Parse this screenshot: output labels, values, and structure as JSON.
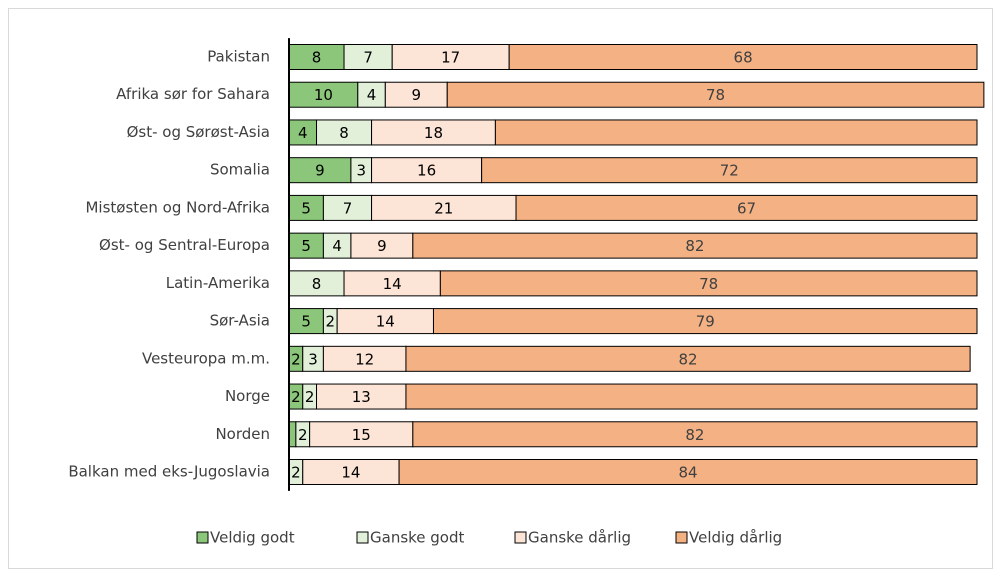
{
  "chart_data": {
    "type": "stacked_barh",
    "categories": [
      "Pakistan",
      "Afrika sør for Sahara",
      "Øst- og Sørøst-Asia",
      "Somalia",
      "Mistøsten og Nord-Afrika",
      "Øst- og Sentral-Europa",
      "Latin-Amerika",
      "Sør-Asia",
      "Vesteuropa m.m.",
      "Norge",
      "Norden",
      "Balkan med eks-Jugoslavia"
    ],
    "xlim": [
      0,
      100
    ],
    "legend": "bottom",
    "series": [
      {
        "name": "Veldig godt",
        "color": "#8cc67a",
        "values": [
          8,
          10,
          4,
          9,
          5,
          5,
          0,
          5,
          2,
          2,
          1,
          0
        ],
        "value_labels": [
          "8",
          "10",
          "4",
          "9",
          "5",
          "5",
          null,
          "5",
          "2",
          "2",
          null,
          null
        ]
      },
      {
        "name": "Ganske godt",
        "color": "#e2f0d9",
        "values": [
          7,
          4,
          8,
          3,
          7,
          4,
          8,
          2,
          3,
          2,
          2,
          2
        ],
        "value_labels": [
          "7",
          "4",
          "8",
          "3",
          "7",
          "4",
          "8",
          "2",
          "3",
          "2",
          "2",
          "2"
        ]
      },
      {
        "name": "Ganske dårlig",
        "color": "#fce4d6",
        "values": [
          17,
          9,
          18,
          16,
          21,
          9,
          14,
          14,
          12,
          13,
          15,
          14
        ],
        "value_labels": [
          "17",
          "9",
          "18",
          "16",
          "21",
          "9",
          "14",
          "14",
          "12",
          "13",
          "15",
          "14"
        ]
      },
      {
        "name": "Veldig dårlig",
        "color": "#f4b183",
        "values": [
          68,
          78,
          70,
          72,
          67,
          82,
          78,
          79,
          82,
          83,
          82,
          84
        ],
        "value_labels": [
          "68",
          "78",
          null,
          "72",
          "67",
          "82",
          "78",
          "79",
          "82",
          null,
          "82",
          "84"
        ]
      }
    ]
  }
}
